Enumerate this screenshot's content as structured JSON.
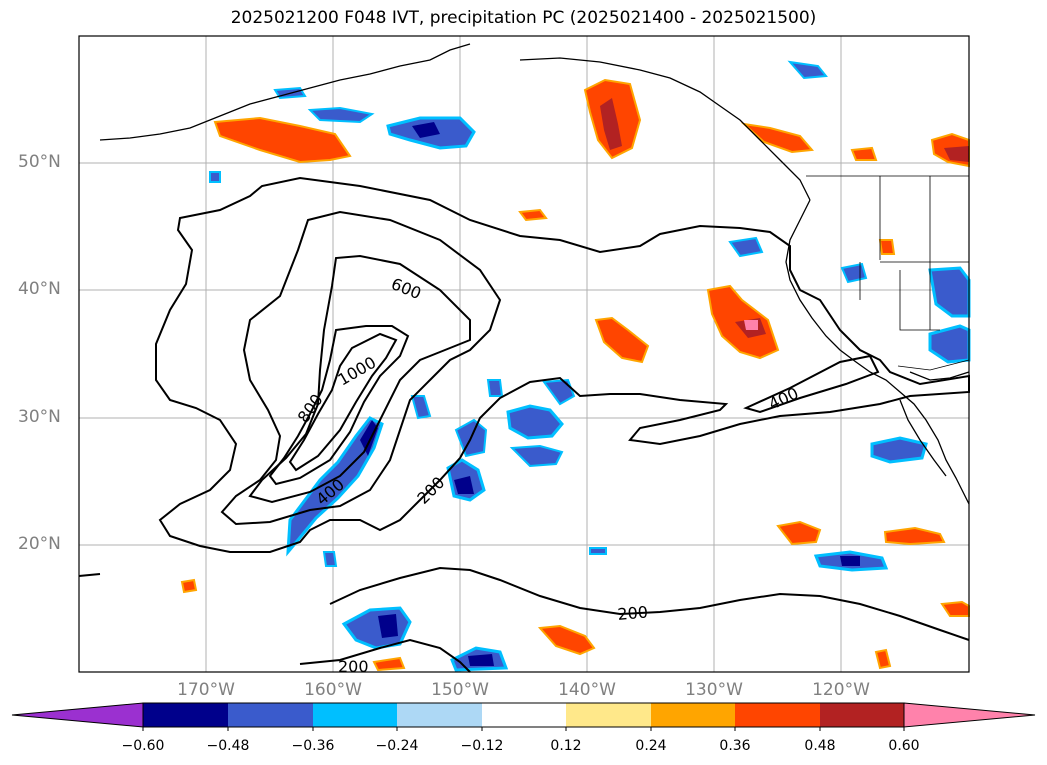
{
  "title": "2025021200 F048 IVT, precipitation PC (2025021400 - 2025021500)",
  "map": {
    "lat_labels": [
      "50°N",
      "40°N",
      "30°N",
      "20°N"
    ],
    "lon_labels": [
      "170°W",
      "160°W",
      "150°W",
      "140°W",
      "130°W",
      "120°W"
    ],
    "contour_labels": [
      "600",
      "1000",
      "800",
      "400",
      "200",
      "400",
      "200",
      "200"
    ]
  },
  "colorbar": {
    "ticks": [
      "−0.60",
      "−0.48",
      "−0.36",
      "−0.24",
      "−0.12",
      "0.12",
      "0.24",
      "0.36",
      "0.48",
      "0.60"
    ],
    "colors": {
      "under": "#9b30d0",
      "bins": [
        "#00008b",
        "#3a5bcc",
        "#00bfff",
        "#add8f5",
        "#ffffff",
        "#ffe88a",
        "#ffa500",
        "#ff4500",
        "#b22222"
      ],
      "over": "#ff82ab"
    }
  }
}
